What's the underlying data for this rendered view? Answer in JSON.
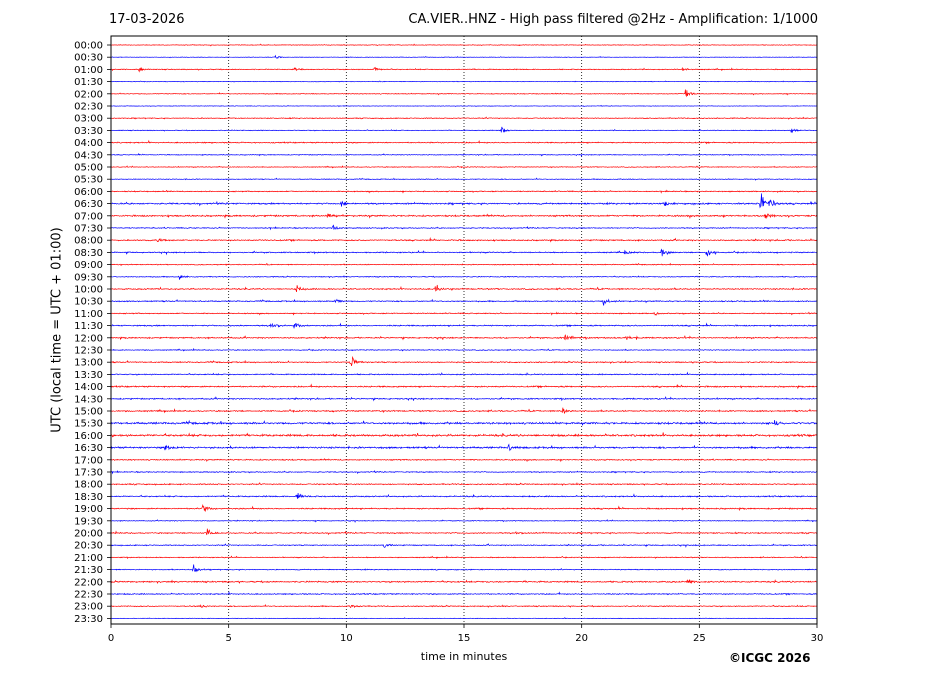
{
  "header": {
    "date": "17-03-2026",
    "title": "CA.VIER..HNZ - High pass filtered @2Hz - Amplification: 1/1000"
  },
  "footer": {
    "copyright": "©ICGC 2026"
  },
  "chart_data": {
    "type": "line",
    "title": "CA.VIER..HNZ - High pass filtered @2Hz - Amplification: 1/1000",
    "xlabel": "time in minutes",
    "ylabel": "UTC (local time = UTC + 01:00)",
    "xlim": [
      0,
      30
    ],
    "x_ticks": [
      0,
      5,
      10,
      15,
      20,
      25,
      30
    ],
    "grid": "vertical dotted at 5-minute intervals",
    "row_colors": [
      "#ff0000",
      "#0000ff"
    ],
    "rows": [
      "00:00",
      "00:30",
      "01:00",
      "01:30",
      "02:00",
      "02:30",
      "03:00",
      "03:30",
      "04:00",
      "04:30",
      "05:00",
      "05:30",
      "06:00",
      "06:30",
      "07:00",
      "07:30",
      "08:00",
      "08:30",
      "09:00",
      "09:30",
      "10:00",
      "10:30",
      "11:00",
      "11:30",
      "12:00",
      "12:30",
      "13:00",
      "13:30",
      "14:00",
      "14:30",
      "15:00",
      "15:30",
      "16:00",
      "16:30",
      "17:00",
      "17:30",
      "18:00",
      "18:30",
      "19:00",
      "19:30",
      "20:00",
      "20:30",
      "21:00",
      "21:30",
      "22:00",
      "22:30",
      "23:00",
      "23:30"
    ],
    "noise_level": [
      0.25,
      0.2,
      0.35,
      0.2,
      0.3,
      0.2,
      0.35,
      0.3,
      0.45,
      0.3,
      0.3,
      0.3,
      0.4,
      0.6,
      0.6,
      0.4,
      0.5,
      0.45,
      0.35,
      0.35,
      0.5,
      0.45,
      0.4,
      0.5,
      0.5,
      0.35,
      0.45,
      0.45,
      0.55,
      0.5,
      0.5,
      0.75,
      0.8,
      0.7,
      0.45,
      0.4,
      0.45,
      0.5,
      0.5,
      0.3,
      0.45,
      0.4,
      0.35,
      0.35,
      0.55,
      0.45,
      0.4,
      0.2
    ],
    "events": [
      {
        "row": "00:30",
        "minute": 7.0,
        "amplitude": 1.5
      },
      {
        "row": "01:00",
        "minute": 1.2,
        "amplitude": 1.5
      },
      {
        "row": "01:00",
        "minute": 7.8,
        "amplitude": 1.5
      },
      {
        "row": "01:00",
        "minute": 11.2,
        "amplitude": 1.5
      },
      {
        "row": "01:00",
        "minute": 24.3,
        "amplitude": 2
      },
      {
        "row": "02:00",
        "minute": 24.4,
        "amplitude": 5
      },
      {
        "row": "03:30",
        "minute": 16.6,
        "amplitude": 2.5
      },
      {
        "row": "03:30",
        "minute": 28.9,
        "amplitude": 2
      },
      {
        "row": "06:30",
        "minute": 9.8,
        "amplitude": 3
      },
      {
        "row": "06:30",
        "minute": 23.5,
        "amplitude": 2.5
      },
      {
        "row": "06:30",
        "minute": 27.6,
        "amplitude": 12
      },
      {
        "row": "06:30",
        "minute": 28.0,
        "amplitude": 5
      },
      {
        "row": "07:00",
        "minute": 9.2,
        "amplitude": 2.5
      },
      {
        "row": "07:00",
        "minute": 27.8,
        "amplitude": 3
      },
      {
        "row": "07:30",
        "minute": 9.4,
        "amplitude": 4
      },
      {
        "row": "08:00",
        "minute": 2.0,
        "amplitude": 2.5
      },
      {
        "row": "08:30",
        "minute": 21.8,
        "amplitude": 2.5
      },
      {
        "row": "08:30",
        "minute": 23.4,
        "amplitude": 5
      },
      {
        "row": "08:30",
        "minute": 25.3,
        "amplitude": 5
      },
      {
        "row": "09:30",
        "minute": 2.9,
        "amplitude": 3
      },
      {
        "row": "10:00",
        "minute": 7.9,
        "amplitude": 4
      },
      {
        "row": "10:00",
        "minute": 13.8,
        "amplitude": 4
      },
      {
        "row": "10:30",
        "minute": 9.5,
        "amplitude": 2.5
      },
      {
        "row": "10:30",
        "minute": 20.9,
        "amplitude": 4
      },
      {
        "row": "11:00",
        "minute": 23.1,
        "amplitude": 2
      },
      {
        "row": "11:30",
        "minute": 6.8,
        "amplitude": 4.5
      },
      {
        "row": "11:30",
        "minute": 7.8,
        "amplitude": 2.5
      },
      {
        "row": "12:00",
        "minute": 19.3,
        "amplitude": 3.5
      },
      {
        "row": "12:00",
        "minute": 21.9,
        "amplitude": 2
      },
      {
        "row": "13:00",
        "minute": 10.2,
        "amplitude": 6
      },
      {
        "row": "15:00",
        "minute": 19.2,
        "amplitude": 3.5
      },
      {
        "row": "15:30",
        "minute": 28.2,
        "amplitude": 3
      },
      {
        "row": "16:30",
        "minute": 2.3,
        "amplitude": 2.5
      },
      {
        "row": "16:30",
        "minute": 16.9,
        "amplitude": 2.5
      },
      {
        "row": "18:30",
        "minute": 7.9,
        "amplitude": 3.5
      },
      {
        "row": "19:00",
        "minute": 3.9,
        "amplitude": 3.5
      },
      {
        "row": "20:00",
        "minute": 4.1,
        "amplitude": 4
      },
      {
        "row": "20:00",
        "minute": 17.2,
        "amplitude": 2
      },
      {
        "row": "20:30",
        "minute": 11.6,
        "amplitude": 2
      },
      {
        "row": "21:30",
        "minute": 3.5,
        "amplitude": 4.5
      },
      {
        "row": "22:00",
        "minute": 24.5,
        "amplitude": 2.5
      },
      {
        "row": "23:00",
        "minute": 3.8,
        "amplitude": 2
      },
      {
        "row": "23:00",
        "minute": 10.2,
        "amplitude": 1.5
      }
    ]
  }
}
